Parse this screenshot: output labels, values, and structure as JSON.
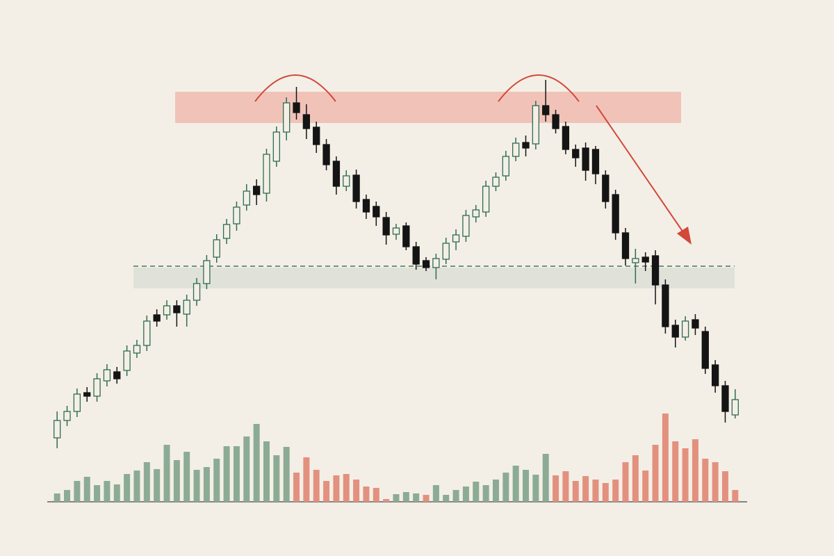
{
  "chart_data": {
    "type": "candlestick",
    "open": [
      170,
      195,
      208,
      235,
      230,
      252,
      265,
      267,
      292,
      303,
      347,
      347,
      360,
      348,
      368,
      392,
      430,
      457,
      478,
      505,
      532,
      522,
      568,
      610,
      652,
      635,
      617,
      592,
      568,
      532,
      548,
      513,
      503,
      487,
      463,
      475,
      445,
      425,
      415,
      427,
      452,
      460,
      488,
      495,
      532,
      547,
      575,
      595,
      593,
      648,
      635,
      618,
      585,
      587,
      585,
      548,
      520,
      465,
      422,
      430,
      432,
      390,
      332,
      315,
      340,
      323,
      275,
      245,
      203
    ],
    "high": [
      208,
      216,
      241,
      243,
      263,
      276,
      272,
      303,
      311,
      346,
      355,
      368,
      368,
      376,
      400,
      433,
      463,
      485,
      510,
      535,
      542,
      586,
      618,
      660,
      675,
      650,
      625,
      600,
      575,
      555,
      556,
      520,
      510,
      495,
      478,
      480,
      452,
      430,
      435,
      458,
      470,
      498,
      505,
      540,
      552,
      583,
      602,
      605,
      655,
      685,
      642,
      625,
      592,
      595,
      590,
      555,
      527,
      472,
      442,
      437,
      440,
      398,
      340,
      345,
      348,
      330,
      282,
      252,
      240
    ],
    "low": [
      155,
      187,
      200,
      222,
      222,
      244,
      248,
      259,
      285,
      295,
      330,
      340,
      330,
      330,
      360,
      384,
      422,
      449,
      468,
      497,
      505,
      510,
      560,
      598,
      628,
      600,
      580,
      555,
      520,
      525,
      500,
      485,
      475,
      448,
      455,
      440,
      412,
      410,
      398,
      420,
      440,
      452,
      480,
      488,
      525,
      540,
      568,
      575,
      585,
      625,
      608,
      578,
      560,
      540,
      535,
      500,
      455,
      418,
      392,
      410,
      362,
      320,
      300,
      310,
      318,
      262,
      235,
      192,
      198
    ],
    "close": [
      195,
      208,
      233,
      230,
      255,
      268,
      255,
      295,
      303,
      338,
      338,
      360,
      350,
      368,
      392,
      425,
      455,
      477,
      502,
      525,
      520,
      578,
      610,
      652,
      638,
      615,
      592,
      563,
      532,
      547,
      510,
      495,
      488,
      462,
      472,
      445,
      420,
      415,
      428,
      450,
      462,
      490,
      498,
      532,
      545,
      575,
      594,
      587,
      648,
      635,
      615,
      585,
      573,
      555,
      550,
      510,
      465,
      428,
      428,
      423,
      390,
      330,
      315,
      338,
      328,
      270,
      245,
      208,
      225
    ],
    "ylim": [
      150,
      700
    ],
    "up_color": "#2f6b50",
    "down_color": "#141414",
    "volume": {
      "values": [
        12,
        17,
        30,
        36,
        24,
        30,
        25,
        40,
        45,
        57,
        47,
        82,
        60,
        72,
        46,
        50,
        62,
        80,
        80,
        94,
        112,
        87,
        67,
        79,
        42,
        64,
        46,
        30,
        38,
        40,
        32,
        22,
        20,
        4,
        11,
        14,
        12,
        10,
        24,
        10,
        17,
        22,
        29,
        24,
        32,
        42,
        52,
        46,
        39,
        69,
        38,
        44,
        30,
        37,
        32,
        27,
        32,
        57,
        67,
        45,
        82,
        127,
        87,
        77,
        90,
        62,
        57,
        44,
        17
      ],
      "colors": [
        "#8cab95",
        "#8cab95",
        "#8cab95",
        "#8cab95",
        "#8cab95",
        "#8cab95",
        "#8cab95",
        "#8cab95",
        "#8cab95",
        "#8cab95",
        "#8cab95",
        "#8cab95",
        "#8cab95",
        "#8cab95",
        "#8cab95",
        "#8cab95",
        "#8cab95",
        "#8cab95",
        "#8cab95",
        "#8cab95",
        "#8cab95",
        "#8cab95",
        "#8cab95",
        "#8cab95",
        "#e3917f",
        "#e3917f",
        "#e3917f",
        "#e3917f",
        "#e3917f",
        "#e3917f",
        "#e3917f",
        "#e3917f",
        "#e3917f",
        "#e3917f",
        "#8cab95",
        "#8cab95",
        "#8cab95",
        "#e3917f",
        "#8cab95",
        "#8cab95",
        "#8cab95",
        "#8cab95",
        "#8cab95",
        "#8cab95",
        "#8cab95",
        "#8cab95",
        "#8cab95",
        "#8cab95",
        "#8cab95",
        "#8cab95",
        "#e3917f",
        "#e3917f",
        "#e3917f",
        "#e3917f",
        "#e3917f",
        "#e3917f",
        "#e3917f",
        "#e3917f",
        "#e3917f",
        "#e3917f",
        "#e3917f",
        "#e3917f",
        "#e3917f",
        "#e3917f",
        "#e3917f",
        "#e3917f",
        "#e3917f",
        "#e3917f",
        "#e3917f"
      ],
      "ylim": [
        0,
        130
      ]
    }
  }
}
